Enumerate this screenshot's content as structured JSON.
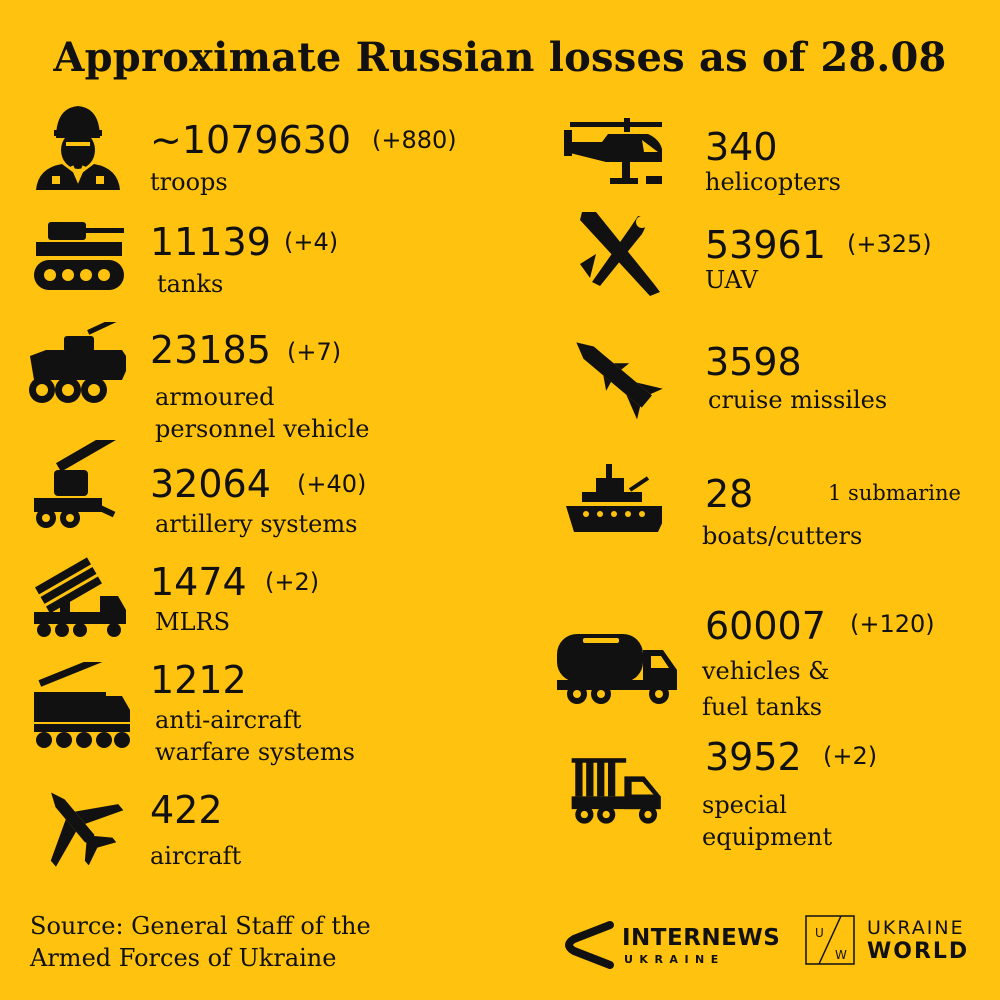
{
  "title": "Approximate Russian losses as of 28.08",
  "left_items": [
    {
      "icon": "soldier-icon",
      "value": "~1079630",
      "delta": "(+880)",
      "label": [
        "troops"
      ]
    },
    {
      "icon": "tank-icon",
      "value": "11139",
      "delta": "(+4)",
      "label": [
        "tanks"
      ]
    },
    {
      "icon": "armoured-vehicle-icon",
      "value": "23185",
      "delta": "(+7)",
      "label": [
        "armoured",
        "personnel vehicle"
      ]
    },
    {
      "icon": "artillery-icon",
      "value": "32064",
      "delta": "(+40)",
      "label": [
        "artillery systems"
      ]
    },
    {
      "icon": "mlrs-icon",
      "value": "1474",
      "delta": "(+2)",
      "label": [
        "MLRS"
      ]
    },
    {
      "icon": "anti-aircraft-icon",
      "value": "1212",
      "delta": "",
      "label": [
        "anti-aircraft",
        "warfare systems"
      ]
    },
    {
      "icon": "aircraft-icon",
      "value": "422",
      "delta": "",
      "label": [
        "aircraft"
      ]
    }
  ],
  "right_items": [
    {
      "icon": "helicopter-icon",
      "value": "340",
      "delta": "",
      "label": [
        "helicopters"
      ]
    },
    {
      "icon": "uav-icon",
      "value": "53961",
      "delta": "(+325)",
      "label": [
        "UAV"
      ]
    },
    {
      "icon": "cruise-missile-icon",
      "value": "3598",
      "delta": "",
      "label": [
        "cruise missiles"
      ]
    },
    {
      "icon": "ship-icon",
      "value": "28",
      "delta": "",
      "note": "1 submarine",
      "label": [
        "boats/cutters"
      ]
    },
    {
      "icon": "fuel-truck-icon",
      "value": "60007",
      "delta": "(+120)",
      "label": [
        "vehicles &",
        "fuel tanks"
      ]
    },
    {
      "icon": "special-truck-icon",
      "value": "3952",
      "delta": "(+2)",
      "label": [
        "special",
        "equipment"
      ]
    }
  ],
  "source": [
    "Source: General Staff of the",
    "Armed Forces of Ukraine"
  ],
  "logos": {
    "internews": {
      "name": "INTERNEWS",
      "sub": "UKRAINE"
    },
    "ukraine_world": {
      "box_letters": [
        "U",
        "W"
      ],
      "line1": "UKRAINE",
      "line2": "WORLD"
    }
  },
  "colors": {
    "background": "#FFC20E",
    "ink": "#111111"
  }
}
